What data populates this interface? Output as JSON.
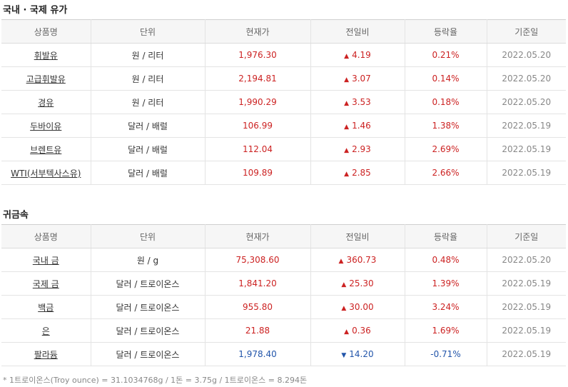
{
  "oil": {
    "title": "국내 · 국제 유가",
    "headers": [
      "상품명",
      "단위",
      "현재가",
      "전일비",
      "등락율",
      "기준일"
    ],
    "rows": [
      {
        "name": "휘발유",
        "unit": "원 / 리터",
        "price": "1,976.30",
        "direction": "up",
        "arrow": "▲",
        "change": "4.19",
        "rate": "0.21%",
        "date": "2022.05.20"
      },
      {
        "name": "고급휘발유",
        "unit": "원 / 리터",
        "price": "2,194.81",
        "direction": "up",
        "arrow": "▲",
        "change": "3.07",
        "rate": "0.14%",
        "date": "2022.05.20"
      },
      {
        "name": "경유",
        "unit": "원 / 리터",
        "price": "1,990.29",
        "direction": "up",
        "arrow": "▲",
        "change": "3.53",
        "rate": "0.18%",
        "date": "2022.05.20"
      },
      {
        "name": "두바이유",
        "unit": "달러 / 배럴",
        "price": "106.99",
        "direction": "up",
        "arrow": "▲",
        "change": "1.46",
        "rate": "1.38%",
        "date": "2022.05.19"
      },
      {
        "name": "브렌트유",
        "unit": "달러 / 배럴",
        "price": "112.04",
        "direction": "up",
        "arrow": "▲",
        "change": "2.93",
        "rate": "2.69%",
        "date": "2022.05.19"
      },
      {
        "name": "WTI(서부텍사스유)",
        "unit": "달러 / 배럴",
        "price": "109.89",
        "direction": "up",
        "arrow": "▲",
        "change": "2.85",
        "rate": "2.66%",
        "date": "2022.05.19"
      }
    ]
  },
  "metals": {
    "title": "귀금속",
    "headers": [
      "상품명",
      "단위",
      "현재가",
      "전일비",
      "등락율",
      "기준일"
    ],
    "rows": [
      {
        "name": "국내 금",
        "unit": "원 / g",
        "price": "75,308.60",
        "direction": "up",
        "arrow": "▲",
        "change": "360.73",
        "rate": "0.48%",
        "date": "2022.05.20"
      },
      {
        "name": "국제 금",
        "unit": "달러 / 트로이온스",
        "price": "1,841.20",
        "direction": "up",
        "arrow": "▲",
        "change": "25.30",
        "rate": "1.39%",
        "date": "2022.05.19"
      },
      {
        "name": "백금",
        "unit": "달러 / 트로이온스",
        "price": "955.80",
        "direction": "up",
        "arrow": "▲",
        "change": "30.00",
        "rate": "3.24%",
        "date": "2022.05.19"
      },
      {
        "name": "은",
        "unit": "달러 / 트로이온스",
        "price": "21.88",
        "direction": "up",
        "arrow": "▲",
        "change": "0.36",
        "rate": "1.69%",
        "date": "2022.05.19"
      },
      {
        "name": "팔라듐",
        "unit": "달러 / 트로이온스",
        "price": "1,978.40",
        "direction": "down",
        "arrow": "▼",
        "change": "14.20",
        "rate": "-0.71%",
        "date": "2022.05.19"
      }
    ]
  },
  "footnote": "* 1트로이온스(Troy ounce) = 31.1034768g / 1돈 = 3.75g / 1트로이온스 = 8.294돈",
  "colors": {
    "up": "#cc2222",
    "down": "#2255aa"
  }
}
